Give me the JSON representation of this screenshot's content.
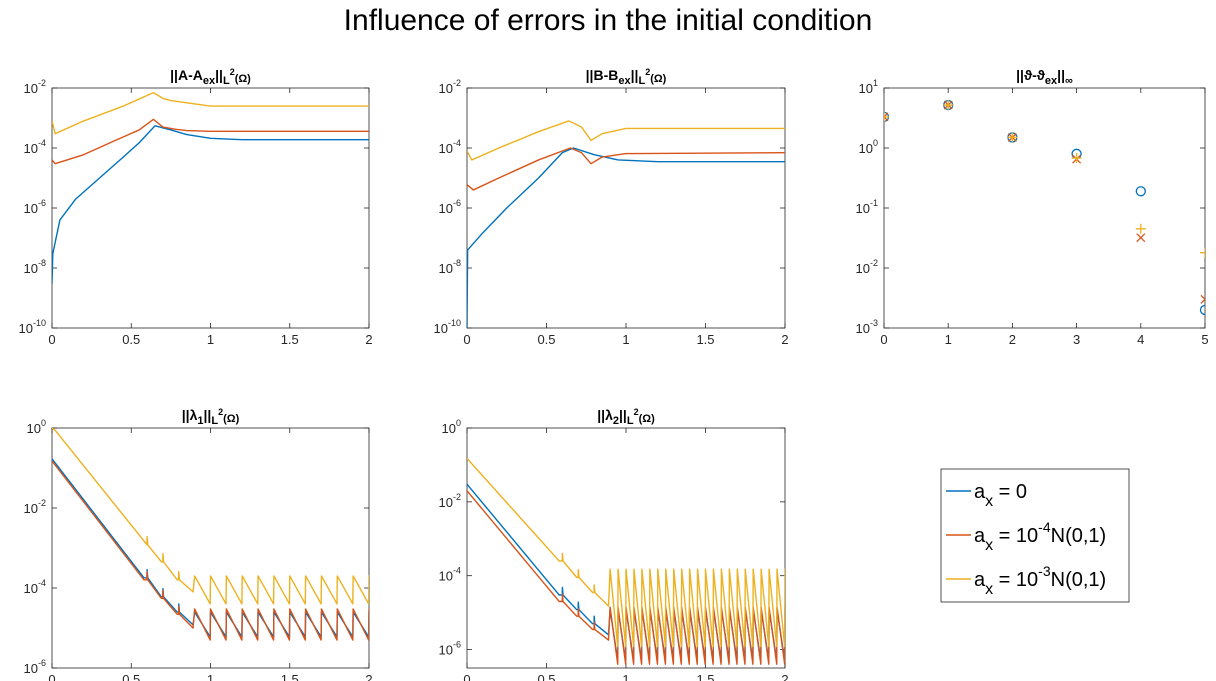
{
  "figure": {
    "title": "Influence of errors in the initial condition"
  },
  "colors": {
    "blue": "#0072BD",
    "red": "#D95319",
    "yellow": "#EDB120"
  },
  "legend": {
    "entries": [
      {
        "a": "a",
        "sub": "x",
        "mid": " = 0",
        "sup": "",
        "tail": ""
      },
      {
        "a": "a",
        "sub": "x",
        "mid": " = 10",
        "sup": "-4",
        "tail": "N(0,1)"
      },
      {
        "a": "a",
        "sub": "x",
        "mid": " = 10",
        "sup": "-3",
        "tail": "N(0,1)"
      }
    ]
  },
  "chart_data": [
    {
      "type": "line",
      "title": {
        "pre": "||A-A",
        "sub": "ex",
        "mid": "||",
        "sub2": "L",
        "sup": "2",
        "post": "(Ω)"
      },
      "xlim": [
        0,
        2
      ],
      "xticks": [
        0,
        0.5,
        1,
        1.5,
        2
      ],
      "xtick_labels": [
        "0",
        "0.5",
        "1",
        "1.5",
        "2"
      ],
      "ylog": true,
      "ylim_exp": [
        -10,
        -2
      ],
      "yticks_exp": [
        -10,
        -8,
        -6,
        -4,
        -2
      ],
      "series": [
        {
          "color_key": "blue",
          "points": [
            [
              0,
              3e-09
            ],
            [
              0.005,
              3e-08
            ],
            [
              0.05,
              4e-07
            ],
            [
              0.15,
              2e-06
            ],
            [
              0.3,
              1e-05
            ],
            [
              0.45,
              5e-05
            ],
            [
              0.55,
              0.00015
            ],
            [
              0.65,
              0.00055
            ],
            [
              0.75,
              0.0004
            ],
            [
              0.85,
              0.00028
            ],
            [
              1,
              0.00021
            ],
            [
              1.2,
              0.00019
            ],
            [
              2,
              0.00019
            ]
          ]
        },
        {
          "color_key": "red",
          "points": [
            [
              0,
              4e-05
            ],
            [
              0.02,
              3e-05
            ],
            [
              0.2,
              6e-05
            ],
            [
              0.4,
              0.00018
            ],
            [
              0.55,
              0.0004
            ],
            [
              0.64,
              0.0009
            ],
            [
              0.7,
              0.0005
            ],
            [
              0.78,
              0.00042
            ],
            [
              0.85,
              0.00038
            ],
            [
              1,
              0.00036
            ],
            [
              2,
              0.00036
            ]
          ]
        },
        {
          "color_key": "yellow",
          "points": [
            [
              0,
              0.0008
            ],
            [
              0.02,
              0.0003
            ],
            [
              0.2,
              0.0008
            ],
            [
              0.45,
              0.0025
            ],
            [
              0.64,
              0.007
            ],
            [
              0.7,
              0.0045
            ],
            [
              0.75,
              0.0038
            ],
            [
              0.85,
              0.0032
            ],
            [
              1,
              0.0025
            ],
            [
              2,
              0.0025
            ]
          ]
        }
      ]
    },
    {
      "type": "line",
      "title": {
        "pre": "||B-B",
        "sub": "ex",
        "mid": "||",
        "sub2": "L",
        "sup": "2",
        "post": "(Ω)"
      },
      "xlim": [
        0,
        2
      ],
      "xticks": [
        0,
        0.5,
        1,
        1.5,
        2
      ],
      "xtick_labels": [
        "0",
        "0.5",
        "1",
        "1.5",
        "2"
      ],
      "ylog": true,
      "ylim_exp": [
        -10,
        -2
      ],
      "yticks_exp": [
        -10,
        -8,
        -6,
        -4,
        -2
      ],
      "series": [
        {
          "color_key": "blue",
          "points": [
            [
              0,
              1e-10
            ],
            [
              0.004,
              4e-08
            ],
            [
              0.1,
              1.5e-07
            ],
            [
              0.25,
              1e-06
            ],
            [
              0.45,
              1e-05
            ],
            [
              0.6,
              7e-05
            ],
            [
              0.67,
              0.0001
            ],
            [
              0.8,
              6e-05
            ],
            [
              0.95,
              4e-05
            ],
            [
              1.2,
              3.5e-05
            ],
            [
              2,
              3.5e-05
            ]
          ]
        },
        {
          "color_key": "red",
          "points": [
            [
              0,
              6e-06
            ],
            [
              0.04,
              4e-06
            ],
            [
              0.2,
              1e-05
            ],
            [
              0.45,
              4e-05
            ],
            [
              0.65,
              0.0001
            ],
            [
              0.72,
              7e-05
            ],
            [
              0.78,
              3e-05
            ],
            [
              0.85,
              5e-05
            ],
            [
              1,
              6.5e-05
            ],
            [
              2,
              7e-05
            ]
          ]
        },
        {
          "color_key": "yellow",
          "points": [
            [
              0,
              8e-05
            ],
            [
              0.03,
              4e-05
            ],
            [
              0.2,
              0.0001
            ],
            [
              0.45,
              0.00035
            ],
            [
              0.64,
              0.0008
            ],
            [
              0.72,
              0.0005
            ],
            [
              0.78,
              0.00018
            ],
            [
              0.85,
              0.0003
            ],
            [
              1,
              0.00045
            ],
            [
              2,
              0.00045
            ]
          ]
        }
      ]
    },
    {
      "type": "scatter",
      "title": {
        "pre": "||ϑ-ϑ",
        "sub": "ex",
        "mid": "||",
        "sub2": "∞",
        "sup": "",
        "post": ""
      },
      "xlim": [
        0,
        5
      ],
      "xticks": [
        0,
        1,
        2,
        3,
        4,
        5
      ],
      "xtick_labels": [
        "0",
        "1",
        "2",
        "3",
        "4",
        "5"
      ],
      "ylog": true,
      "ylim_exp": [
        -3,
        1
      ],
      "yticks_exp": [
        -3,
        -2,
        -1,
        0,
        1
      ],
      "series": [
        {
          "color_key": "blue",
          "marker": "o",
          "x": [
            0,
            1,
            2,
            3,
            4,
            5
          ],
          "y": [
            3.3,
            5.2,
            1.5,
            0.8,
            0.19,
            0.002
          ]
        },
        {
          "color_key": "red",
          "marker": "x",
          "x": [
            0,
            1,
            2,
            3,
            4,
            5
          ],
          "y": [
            3.3,
            5.2,
            1.5,
            0.65,
            0.032,
            0.003
          ]
        },
        {
          "color_key": "yellow",
          "marker": "+",
          "x": [
            0,
            1,
            2,
            3,
            4,
            5
          ],
          "y": [
            3.3,
            5.2,
            1.5,
            0.68,
            0.045,
            0.018
          ]
        }
      ]
    },
    {
      "type": "line",
      "title": {
        "pre": "||λ",
        "sub": "1",
        "mid": "||",
        "sub2": "L",
        "sup": "2",
        "post": "(Ω)"
      },
      "xlim": [
        0,
        2
      ],
      "xticks": [
        0,
        0.5,
        1,
        1.5,
        2
      ],
      "xtick_labels": [
        "0",
        "0.5",
        "1",
        "1.5",
        "2"
      ],
      "ylog": true,
      "ylim_exp": [
        -6,
        0
      ],
      "yticks_exp": [
        -6,
        -4,
        -2,
        0
      ],
      "series": [
        {
          "color_key": "blue",
          "kind": "sawtooth",
          "start": 0.17,
          "knee": 0.58,
          "knee_val": 0.00018,
          "steps": [
            [
              0.6,
              0.00018,
              6e-05
            ],
            [
              0.7,
              6e-05,
              2.5e-05
            ],
            [
              0.8,
              2.5e-05,
              1.2e-05
            ]
          ],
          "plateau_low": 6e-06,
          "plateau_high": 2.5e-05,
          "period": 0.1,
          "x_end": 2
        },
        {
          "color_key": "red",
          "kind": "sawtooth",
          "start": 0.15,
          "knee": 0.58,
          "knee_val": 0.00016,
          "steps": [
            [
              0.6,
              0.00016,
              5.5e-05
            ],
            [
              0.7,
              5.5e-05,
              2.2e-05
            ],
            [
              0.8,
              2.2e-05,
              1e-05
            ]
          ],
          "plateau_low": 5e-06,
          "plateau_high": 3e-05,
          "period": 0.1,
          "x_end": 2
        },
        {
          "color_key": "yellow",
          "kind": "sawtooth",
          "start": 1.1,
          "knee": 0.6,
          "knee_val": 0.0012,
          "steps": [
            [
              0.6,
              0.0012,
              0.00045
            ],
            [
              0.7,
              0.00045,
              0.00016
            ],
            [
              0.8,
              0.00016,
              8e-05
            ]
          ],
          "plateau_low": 4e-05,
          "plateau_high": 0.0002,
          "period": 0.1,
          "x_end": 2
        }
      ]
    },
    {
      "type": "line",
      "title": {
        "pre": "||λ",
        "sub": "2",
        "mid": "||",
        "sub2": "L",
        "sup": "2",
        "post": "(Ω)"
      },
      "xlim": [
        0,
        2
      ],
      "xticks": [
        0,
        0.5,
        1,
        1.5,
        2
      ],
      "xtick_labels": [
        "0",
        "0.5",
        "1",
        "1.5",
        "2"
      ],
      "ylog": true,
      "ylim_exp": [
        -6.5,
        0
      ],
      "yticks_exp": [
        -6,
        -4,
        -2,
        0
      ],
      "series": [
        {
          "color_key": "blue",
          "kind": "sawtooth",
          "start": 0.03,
          "knee": 0.58,
          "knee_val": 3e-05,
          "steps": [
            [
              0.6,
              3e-05,
              1.2e-05
            ],
            [
              0.7,
              1.2e-05,
              5e-06
            ],
            [
              0.8,
              5e-06,
              2.5e-06
            ]
          ],
          "plateau_low": 5e-07,
          "plateau_high": 1.2e-05,
          "period": 0.05,
          "x_end": 2
        },
        {
          "color_key": "red",
          "kind": "sawtooth",
          "start": 0.02,
          "knee": 0.58,
          "knee_val": 2e-05,
          "steps": [
            [
              0.6,
              2e-05,
              8e-06
            ],
            [
              0.7,
              8e-06,
              3.5e-06
            ],
            [
              0.8,
              3.5e-06,
              1.8e-06
            ]
          ],
          "plateau_low": 4e-07,
          "plateau_high": 1.4e-05,
          "period": 0.05,
          "x_end": 2
        },
        {
          "color_key": "yellow",
          "kind": "sawtooth",
          "start": 0.15,
          "knee": 0.58,
          "knee_val": 0.00025,
          "steps": [
            [
              0.6,
              0.00025,
              9e-05
            ],
            [
              0.7,
              9e-05,
              3.5e-05
            ],
            [
              0.8,
              3.5e-05,
              1.5e-05
            ]
          ],
          "plateau_low": 1.2e-06,
          "plateau_high": 0.00015,
          "period": 0.05,
          "x_end": 2
        }
      ]
    }
  ]
}
